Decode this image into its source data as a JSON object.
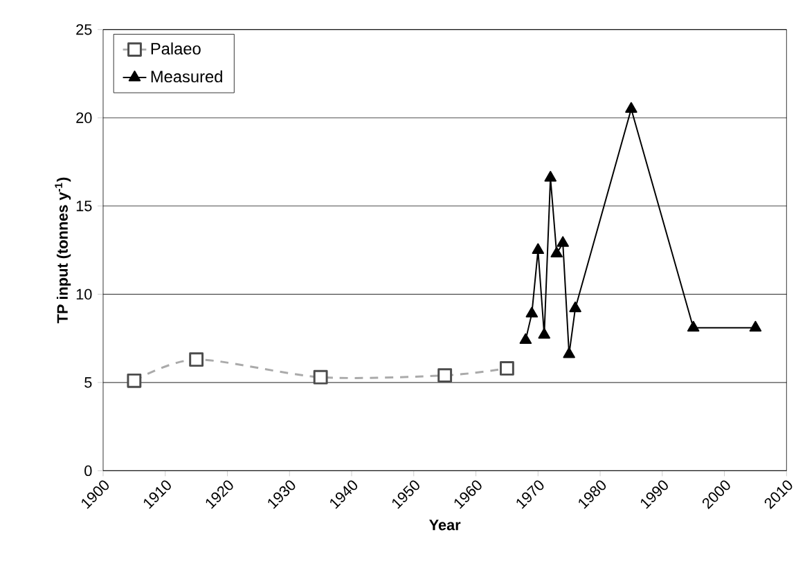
{
  "chart_data": {
    "type": "line",
    "xlabel": "Year",
    "ylabel": "TP input (tonnes y$^{-1}$)",
    "xlim": [
      1900,
      2010
    ],
    "xticks": [
      1900,
      1910,
      1920,
      1930,
      1940,
      1950,
      1960,
      1970,
      1980,
      1990,
      2000,
      2010
    ],
    "ylim": [
      0,
      25
    ],
    "yticks": [
      0,
      5,
      10,
      15,
      20,
      25
    ],
    "grid": "y",
    "legend": "top left",
    "series": [
      {
        "name": "Palaeo",
        "color": "#aaaaaa",
        "marker": "square",
        "line_style": "dashed",
        "x": [
          1905,
          1915,
          1935,
          1955,
          1965
        ],
        "values": [
          5.1,
          6.3,
          5.3,
          5.4,
          5.8
        ]
      },
      {
        "name": "Measured",
        "color": "#000000",
        "marker": "triangle",
        "line_style": "solid",
        "x": [
          1968,
          1969,
          1970,
          1971,
          1972,
          1973,
          1974,
          1975,
          1976,
          1985,
          1995,
          2005
        ],
        "values": [
          7.4,
          8.9,
          12.5,
          7.7,
          16.6,
          12.3,
          12.9,
          6.6,
          9.2,
          20.5,
          8.1,
          8.1
        ]
      }
    ]
  }
}
